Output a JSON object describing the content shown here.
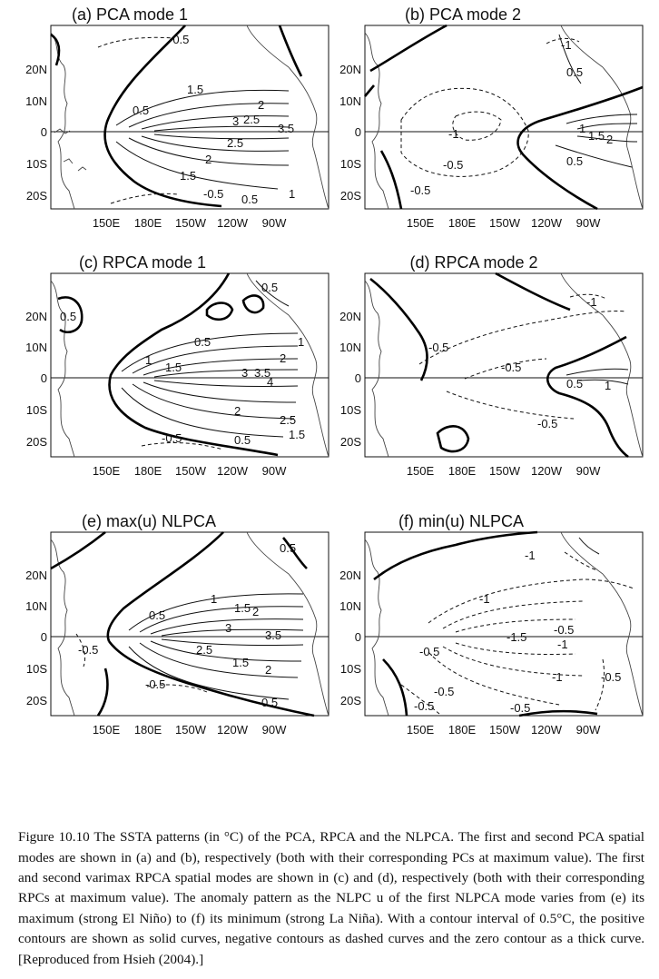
{
  "panels": [
    {
      "id": "a",
      "title": "(a)  PCA mode 1",
      "pos": [
        "-0.5",
        "1.5",
        "2",
        "2.5",
        "3",
        "3.5",
        "0.5",
        "1",
        "2",
        "1.5",
        "2.5",
        "0.5",
        "1"
      ],
      "neg": [
        "-0.5",
        "-0.5"
      ]
    },
    {
      "id": "b",
      "title": "(b)  PCA mode 2",
      "pos": [
        "0.5",
        "1.5",
        "2",
        "1",
        "0.5"
      ],
      "neg": [
        "-1",
        "-1",
        "-0.5",
        "-0.5"
      ]
    },
    {
      "id": "c",
      "title": "(c)  RPCA mode 1",
      "pos": [
        "0.5",
        "1",
        "1.5",
        "0.5",
        "3",
        "3.5",
        "4",
        "2",
        "2",
        "2.5",
        "0.5",
        "1.5",
        "0.5",
        "1"
      ],
      "neg": [
        "-0.5"
      ]
    },
    {
      "id": "d",
      "title": "(d)  RPCA mode 2",
      "pos": [
        "0.5",
        "1"
      ],
      "neg": [
        "-0.5",
        "-0.5",
        "-0.5",
        "-1"
      ]
    },
    {
      "id": "e",
      "title": "(e)  max(u)  NLPCA",
      "pos": [
        "0.5",
        "1",
        "1.5",
        "2",
        "3",
        "3.5",
        "2.5",
        "1.5",
        "2",
        "0.5",
        "0.5"
      ],
      "neg": [
        "-0.5",
        "-0.5"
      ]
    },
    {
      "id": "f",
      "title": "(f)  min(u)  NLPCA",
      "pos": [],
      "neg": [
        "-1",
        "-1",
        "-1.5",
        "-0.5",
        "-0.5",
        "-0.5",
        "-1",
        "-1",
        "-0.5",
        "-0.5",
        "-0.5"
      ]
    }
  ],
  "axes": {
    "y_ticks": [
      "20N",
      "10N",
      "0",
      "10S",
      "20S"
    ],
    "x_ticks": [
      "150E",
      "180E",
      "150W",
      "120W",
      "90W"
    ]
  },
  "caption": "Figure 10.10 The SSTA patterns (in °C) of the PCA, RPCA and the NLPCA. The first and second PCA spatial modes are shown in (a) and (b), respectively (both with their corresponding PCs at maximum value). The first and second varimax RPCA spatial modes are shown in (c) and (d), respectively (both with their corresponding RPCs at maximum value). The anomaly pattern as the NLPC u of the first NLPCA mode varies from (e) its maximum (strong El Niño) to (f) its minimum (strong La Niña). With a contour interval of 0.5°C, the positive contours are shown as solid curves, negative contours as dashed curves and the zero contour as a thick curve. [Reproduced from Hsieh (2004).]"
}
